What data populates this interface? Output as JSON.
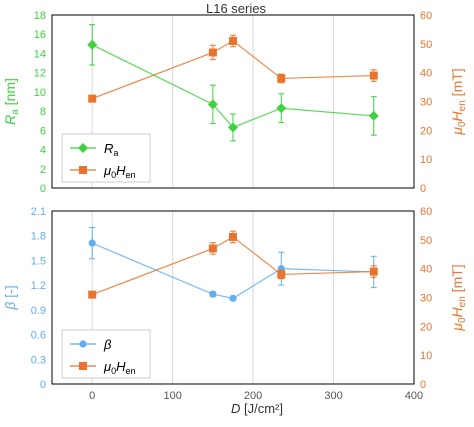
{
  "figure": {
    "title": "L16 series",
    "xlabel_var": "D",
    "xlabel_unit": " [J/cm²]"
  },
  "colors": {
    "green": "#3fd13f",
    "orange": "#e8752f",
    "blue": "#62aef0",
    "frame": "#000000",
    "grid": "#d9d9d9"
  },
  "chart_data": [
    {
      "type": "line",
      "title": "L16 series",
      "xlabel": "D [J/cm²]",
      "xlim": [
        -50,
        400
      ],
      "xticks": [
        0,
        100,
        200,
        300,
        400
      ],
      "left_axis": {
        "label_var": "R",
        "label_sub": "a",
        "label_unit": " [nm]",
        "ylim": [
          0,
          18
        ],
        "ticks": [
          0,
          2,
          4,
          6,
          8,
          10,
          12,
          14,
          16,
          18
        ],
        "color": "#3fd13f"
      },
      "right_axis": {
        "label_pre": "μ",
        "label_sub1": "0",
        "label_var": "H",
        "label_sub2": "en",
        "label_unit": " [mT]",
        "ylim": [
          0,
          60
        ],
        "ticks": [
          0,
          10,
          20,
          30,
          40,
          50,
          60
        ],
        "color": "#e8752f"
      },
      "series": [
        {
          "name": "Ra",
          "axis": "left",
          "marker": "diamond",
          "color": "#3fd13f",
          "x": [
            0,
            150,
            175,
            235,
            350
          ],
          "y": [
            14.9,
            8.7,
            6.3,
            8.3,
            7.5
          ],
          "err": [
            2.1,
            2.0,
            1.4,
            1.5,
            2.0
          ]
        },
        {
          "name": "μ0Hen",
          "axis": "right",
          "marker": "square",
          "color": "#e8752f",
          "x": [
            0,
            150,
            175,
            235,
            350
          ],
          "y": [
            31,
            47,
            51,
            38,
            39
          ],
          "err": [
            1.0,
            2.5,
            2.0,
            1.5,
            2.0
          ]
        }
      ],
      "legend": {
        "position": "bottom-left",
        "entries": [
          {
            "var": "R",
            "sub": "a",
            "marker": "diamond",
            "color": "#3fd13f"
          },
          {
            "pre": "μ",
            "sub1": "0",
            "var": "H",
            "sub2": "en",
            "marker": "square",
            "color": "#e8752f"
          }
        ]
      },
      "grid": "vertical"
    },
    {
      "type": "line",
      "xlabel": "D [J/cm²]",
      "xlim": [
        -50,
        400
      ],
      "xticks": [
        0,
        100,
        200,
        300,
        400
      ],
      "left_axis": {
        "label_var": "β",
        "label_unit": " [-]",
        "ylim": [
          0,
          2.1
        ],
        "ticks": [
          0,
          0.3,
          0.6,
          0.9,
          1.2,
          1.5,
          1.8,
          2.1
        ],
        "tick_labels": [
          "0",
          "0.3",
          "0.6",
          "0.9",
          "1.2",
          "1.5",
          "1.8",
          "2.1"
        ],
        "color": "#62aef0"
      },
      "right_axis": {
        "label_pre": "μ",
        "label_sub1": "0",
        "label_var": "H",
        "label_sub2": "en",
        "label_unit": " [mT]",
        "ylim": [
          0,
          60
        ],
        "ticks": [
          0,
          10,
          20,
          30,
          40,
          50,
          60
        ],
        "color": "#e8752f"
      },
      "series": [
        {
          "name": "β",
          "axis": "left",
          "marker": "circle",
          "color": "#62aef0",
          "x": [
            0,
            150,
            175,
            235,
            350
          ],
          "y": [
            1.71,
            1.09,
            1.04,
            1.4,
            1.36
          ],
          "err": [
            0.19,
            0.03,
            0.02,
            0.2,
            0.19
          ]
        },
        {
          "name": "μ0Hen",
          "axis": "right",
          "marker": "square",
          "color": "#e8752f",
          "x": [
            0,
            150,
            175,
            235,
            350
          ],
          "y": [
            31,
            47,
            51,
            38,
            39
          ],
          "err": [
            1.0,
            2.0,
            2.0,
            1.5,
            2.0
          ]
        }
      ],
      "legend": {
        "position": "bottom-left",
        "entries": [
          {
            "var": "β",
            "marker": "circle",
            "color": "#62aef0"
          },
          {
            "pre": "μ",
            "sub1": "0",
            "var": "H",
            "sub2": "en",
            "marker": "square",
            "color": "#e8752f"
          }
        ]
      },
      "grid": "vertical"
    }
  ]
}
